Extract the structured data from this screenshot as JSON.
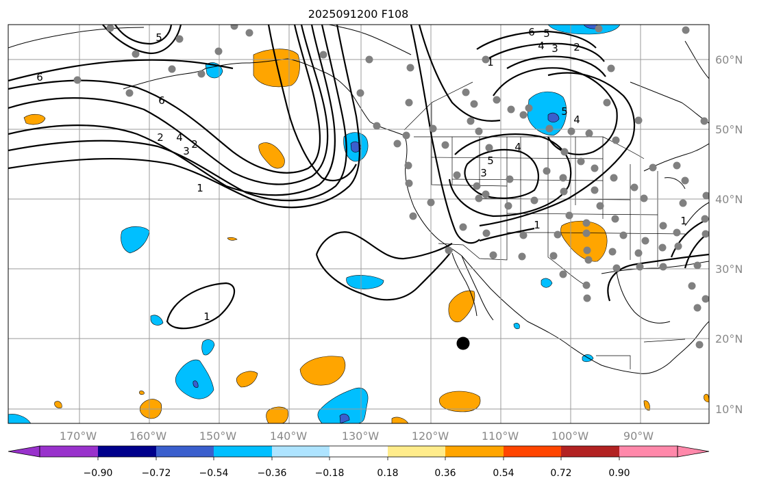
{
  "title": "2025091200 F108",
  "map": {
    "lat_ticks": [
      "60°N",
      "50°N",
      "40°N",
      "30°N",
      "20°N",
      "10°N"
    ],
    "lon_ticks": [
      "170°W",
      "160°W",
      "150°W",
      "140°W",
      "130°W",
      "120°W",
      "110°W",
      "100°W",
      "90°W"
    ],
    "contour_labels": [
      "6",
      "5",
      "4",
      "3",
      "2",
      "1",
      "6",
      "2",
      "4",
      "5",
      "3",
      "1",
      "1",
      "5",
      "4",
      "1",
      "6",
      "5",
      "4",
      "3",
      "2",
      "1"
    ],
    "stations": "gray",
    "colors": {
      "land_line": "#000000",
      "grid": "#9a9a9a",
      "tick_text": "#888888",
      "station_dot": "#808080",
      "marker": "#000000"
    }
  },
  "colorbar": {
    "tick_labels": [
      "−0.90",
      "−0.72",
      "−0.54",
      "−0.36",
      "−0.18",
      "0.18",
      "0.36",
      "0.54",
      "0.72",
      "0.90"
    ],
    "colors": [
      "#9932cc",
      "#00008b",
      "#3a5fcd",
      "#00bfff",
      "#aee4ff",
      "#ffffff",
      "#ffec8b",
      "#ffa500",
      "#ff4500",
      "#b22222",
      "#ff88aa"
    ]
  }
}
